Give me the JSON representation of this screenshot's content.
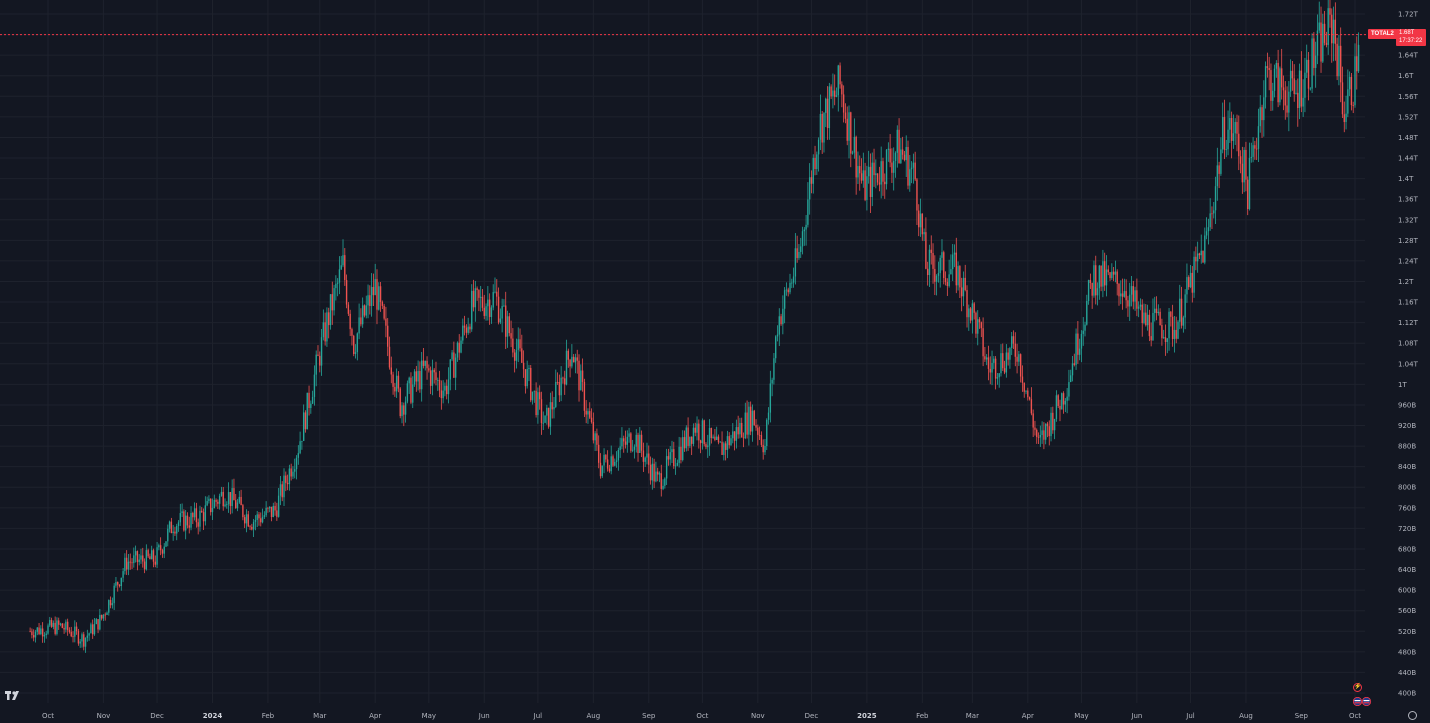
{
  "symbol": {
    "ticker": "TOTAL2",
    "last_price_label": "1.68T",
    "countdown": "17:37:22"
  },
  "chart_data": {
    "type": "candlestick",
    "title": "",
    "xlabel": "",
    "ylabel": "",
    "ylim": [
      400000000000,
      1740000000000
    ],
    "y_scale": "linear",
    "grid": true,
    "last_price": 1680000000000,
    "y_ticks": [
      "1.72T",
      "1.68T",
      "1.64T",
      "1.6T",
      "1.56T",
      "1.52T",
      "1.48T",
      "1.44T",
      "1.4T",
      "1.36T",
      "1.32T",
      "1.28T",
      "1.24T",
      "1.2T",
      "1.16T",
      "1.12T",
      "1.08T",
      "1.04T",
      "1T",
      "960B",
      "920B",
      "880B",
      "840B",
      "800B",
      "760B",
      "720B",
      "680B",
      "640B",
      "600B",
      "560B",
      "520B",
      "480B",
      "440B",
      "400B"
    ],
    "x_ticks": [
      {
        "label": "Oct",
        "date": "2023-10-01"
      },
      {
        "label": "Nov",
        "date": "2023-11-01"
      },
      {
        "label": "Dec",
        "date": "2023-12-01"
      },
      {
        "label": "2024",
        "date": "2024-01-01",
        "year": true
      },
      {
        "label": "Feb",
        "date": "2024-02-01"
      },
      {
        "label": "Mar",
        "date": "2024-03-01"
      },
      {
        "label": "Apr",
        "date": "2024-04-01"
      },
      {
        "label": "May",
        "date": "2024-05-01"
      },
      {
        "label": "Jun",
        "date": "2024-06-01"
      },
      {
        "label": "Jul",
        "date": "2024-07-01"
      },
      {
        "label": "Aug",
        "date": "2024-08-01"
      },
      {
        "label": "Sep",
        "date": "2024-09-01"
      },
      {
        "label": "Oct",
        "date": "2024-10-01"
      },
      {
        "label": "Nov",
        "date": "2024-11-01"
      },
      {
        "label": "Dec",
        "date": "2024-12-01"
      },
      {
        "label": "2025",
        "date": "2025-01-01",
        "year": true
      },
      {
        "label": "Feb",
        "date": "2025-02-01"
      },
      {
        "label": "Mar",
        "date": "2025-03-01"
      },
      {
        "label": "Apr",
        "date": "2025-04-01"
      },
      {
        "label": "May",
        "date": "2025-05-01"
      },
      {
        "label": "Jun",
        "date": "2025-06-01"
      },
      {
        "label": "Jul",
        "date": "2025-07-01"
      },
      {
        "label": "Aug",
        "date": "2025-08-01"
      },
      {
        "label": "Sep",
        "date": "2025-09-01"
      },
      {
        "label": "Oct",
        "date": "2025-10-01"
      }
    ],
    "series": [
      {
        "data": [
          {
            "x": "2023-09-21",
            "y": 520000000000
          },
          {
            "x": "2023-10-08",
            "y": 530000000000
          },
          {
            "x": "2023-10-21",
            "y": 505000000000
          },
          {
            "x": "2023-10-31",
            "y": 545000000000
          },
          {
            "x": "2023-11-14",
            "y": 655000000000
          },
          {
            "x": "2023-11-30",
            "y": 660000000000
          },
          {
            "x": "2023-12-10",
            "y": 730000000000
          },
          {
            "x": "2023-12-24",
            "y": 740000000000
          },
          {
            "x": "2024-01-08",
            "y": 790000000000
          },
          {
            "x": "2024-01-23",
            "y": 735000000000
          },
          {
            "x": "2024-02-05",
            "y": 755000000000
          },
          {
            "x": "2024-02-18",
            "y": 880000000000
          },
          {
            "x": "2024-03-05",
            "y": 1120000000000
          },
          {
            "x": "2024-03-14",
            "y": 1230000000000
          },
          {
            "x": "2024-03-20",
            "y": 1080000000000
          },
          {
            "x": "2024-04-01",
            "y": 1190000000000
          },
          {
            "x": "2024-04-15",
            "y": 960000000000
          },
          {
            "x": "2024-04-29",
            "y": 1030000000000
          },
          {
            "x": "2024-05-10",
            "y": 990000000000
          },
          {
            "x": "2024-05-25",
            "y": 1150000000000
          },
          {
            "x": "2024-06-07",
            "y": 1170000000000
          },
          {
            "x": "2024-06-20",
            "y": 1060000000000
          },
          {
            "x": "2024-07-05",
            "y": 920000000000
          },
          {
            "x": "2024-07-20",
            "y": 1070000000000
          },
          {
            "x": "2024-08-05",
            "y": 840000000000
          },
          {
            "x": "2024-08-24",
            "y": 900000000000
          },
          {
            "x": "2024-09-06",
            "y": 810000000000
          },
          {
            "x": "2024-09-27",
            "y": 920000000000
          },
          {
            "x": "2024-10-10",
            "y": 870000000000
          },
          {
            "x": "2024-10-29",
            "y": 940000000000
          },
          {
            "x": "2024-11-05",
            "y": 880000000000
          },
          {
            "x": "2024-11-12",
            "y": 1120000000000
          },
          {
            "x": "2024-11-24",
            "y": 1250000000000
          },
          {
            "x": "2024-12-05",
            "y": 1500000000000
          },
          {
            "x": "2024-12-17",
            "y": 1580000000000
          },
          {
            "x": "2024-12-30",
            "y": 1380000000000
          },
          {
            "x": "2025-01-19",
            "y": 1460000000000
          },
          {
            "x": "2025-01-28",
            "y": 1400000000000
          },
          {
            "x": "2025-02-03",
            "y": 1230000000000
          },
          {
            "x": "2025-02-20",
            "y": 1220000000000
          },
          {
            "x": "2025-03-03",
            "y": 1120000000000
          },
          {
            "x": "2025-03-10",
            "y": 1030000000000
          },
          {
            "x": "2025-03-26",
            "y": 1070000000000
          },
          {
            "x": "2025-04-07",
            "y": 880000000000
          },
          {
            "x": "2025-04-22",
            "y": 990000000000
          },
          {
            "x": "2025-05-08",
            "y": 1210000000000
          },
          {
            "x": "2025-05-25",
            "y": 1190000000000
          },
          {
            "x": "2025-06-05",
            "y": 1120000000000
          },
          {
            "x": "2025-06-22",
            "y": 1110000000000
          },
          {
            "x": "2025-07-10",
            "y": 1280000000000
          },
          {
            "x": "2025-07-20",
            "y": 1500000000000
          },
          {
            "x": "2025-07-27",
            "y": 1480000000000
          },
          {
            "x": "2025-08-02",
            "y": 1380000000000
          },
          {
            "x": "2025-08-12",
            "y": 1600000000000
          },
          {
            "x": "2025-08-28",
            "y": 1560000000000
          },
          {
            "x": "2025-09-13",
            "y": 1670000000000
          },
          {
            "x": "2025-09-19",
            "y": 1700000000000
          },
          {
            "x": "2025-09-25",
            "y": 1530000000000
          },
          {
            "x": "2025-10-01",
            "y": 1600000000000
          },
          {
            "x": "2025-10-03",
            "y": 1680000000000
          }
        ]
      }
    ]
  },
  "colors": {
    "background": "#131722",
    "grid": "#1e222d",
    "up": "#26a69a",
    "down": "#ef5350",
    "price_line": "#f23645",
    "text": "#b2b5be"
  },
  "icons": {
    "logo": "tradingview-logo-icon",
    "events": "flash-event-icon",
    "flags": "flag-event-icon",
    "settings": "gear-icon"
  }
}
